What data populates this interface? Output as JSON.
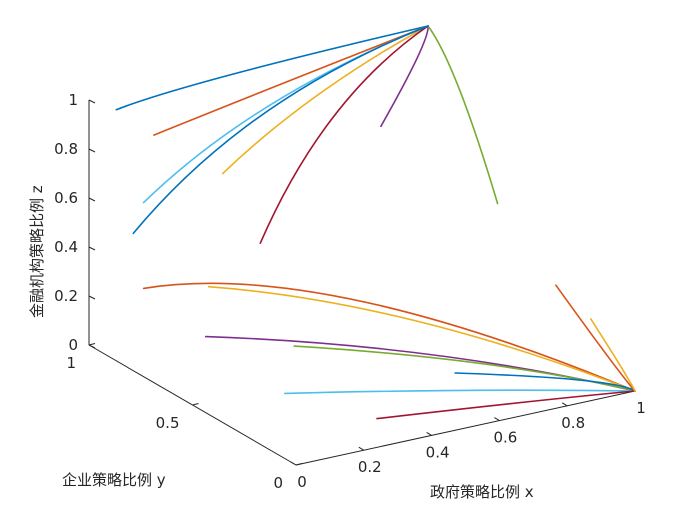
{
  "chart_data": {
    "type": "line",
    "subtype": "3d-phase-trajectories",
    "title": "",
    "xlabel": "政府策略比例 x",
    "ylabel": "企业策略比例 y",
    "zlabel": "金融机构策略比例 z",
    "xlim": [
      0,
      1
    ],
    "ylim": [
      0,
      1
    ],
    "zlim": [
      0,
      1
    ],
    "xticks": [
      "0",
      "0.2",
      "0.4",
      "0.6",
      "0.8",
      "1"
    ],
    "yticks": [
      "0",
      "0.5",
      "1"
    ],
    "zticks": [
      "0",
      "0.2",
      "0.4",
      "0.6",
      "0.8",
      "1"
    ],
    "grid": false,
    "legend": "none",
    "attractors": [
      {
        "x": 1,
        "y": 0,
        "z": 0
      },
      {
        "x": 1,
        "y": 1,
        "z": 1
      }
    ],
    "colors": [
      "#0072BD",
      "#D95319",
      "#EDB120",
      "#7E2F8E",
      "#77AC30",
      "#4DBEEE",
      "#A2142F"
    ],
    "series": [
      {
        "values": [
          [
            0.05,
            0.95,
            0.97
          ],
          [
            0.4,
            0.98,
            0.99
          ],
          [
            1,
            1,
            1
          ]
        ]
      },
      {
        "values": [
          [
            0.1,
            0.85,
            0.9
          ],
          [
            0.5,
            0.9,
            0.96
          ],
          [
            1,
            1,
            1
          ]
        ]
      },
      {
        "values": [
          [
            0.15,
            0.6,
            0.85
          ],
          [
            0.55,
            0.8,
            0.95
          ],
          [
            1,
            1,
            1
          ]
        ]
      },
      {
        "values": [
          [
            0.8,
            0.9,
            0.7
          ],
          [
            0.95,
            0.97,
            0.9
          ],
          [
            1,
            1,
            1
          ]
        ]
      },
      {
        "values": [
          [
            0.9,
            0.5,
            0.55
          ],
          [
            0.97,
            0.8,
            0.85
          ],
          [
            1,
            1,
            1
          ]
        ]
      },
      {
        "values": [
          [
            0.1,
            0.9,
            0.6
          ],
          [
            0.5,
            0.95,
            0.85
          ],
          [
            1,
            1,
            1
          ]
        ]
      },
      {
        "values": [
          [
            0.2,
            0.5,
            0.6
          ],
          [
            0.6,
            0.8,
            0.85
          ],
          [
            1,
            1,
            1
          ]
        ]
      },
      {
        "values": [
          [
            0.1,
            0.95,
            0.45
          ],
          [
            0.5,
            0.98,
            0.8
          ],
          [
            1,
            1,
            1
          ]
        ]
      },
      {
        "values": [
          [
            0.1,
            0.9,
            0.25
          ],
          [
            0.6,
            0.7,
            0.15
          ],
          [
            1,
            0,
            0
          ]
        ]
      },
      {
        "values": [
          [
            0.2,
            0.75,
            0.3
          ],
          [
            0.65,
            0.5,
            0.15
          ],
          [
            1,
            0,
            0
          ]
        ]
      },
      {
        "values": [
          [
            0.1,
            0.6,
            0.2
          ],
          [
            0.6,
            0.35,
            0.1
          ],
          [
            1,
            0,
            0
          ]
        ]
      },
      {
        "values": [
          [
            0.3,
            0.5,
            0.15
          ],
          [
            0.7,
            0.25,
            0.08
          ],
          [
            1,
            0,
            0
          ]
        ]
      },
      {
        "values": [
          [
            0.15,
            0.3,
            0.1
          ],
          [
            0.6,
            0.15,
            0.05
          ],
          [
            1,
            0,
            0
          ]
        ]
      },
      {
        "values": [
          [
            0.3,
            0.1,
            0.05
          ],
          [
            0.7,
            0.05,
            0.02
          ],
          [
            1,
            0,
            0
          ]
        ]
      },
      {
        "values": [
          [
            0.5,
            0.05,
            0.2
          ],
          [
            0.85,
            0.02,
            0.08
          ],
          [
            1,
            0,
            0
          ]
        ]
      },
      {
        "values": [
          [
            0.95,
            0.3,
            0.3
          ],
          [
            0.98,
            0.1,
            0.1
          ],
          [
            1,
            0,
            0
          ]
        ]
      },
      {
        "values": [
          [
            0.9,
            0.05,
            0.3
          ],
          [
            0.97,
            0.02,
            0.1
          ],
          [
            1,
            0,
            0
          ]
        ]
      }
    ]
  }
}
